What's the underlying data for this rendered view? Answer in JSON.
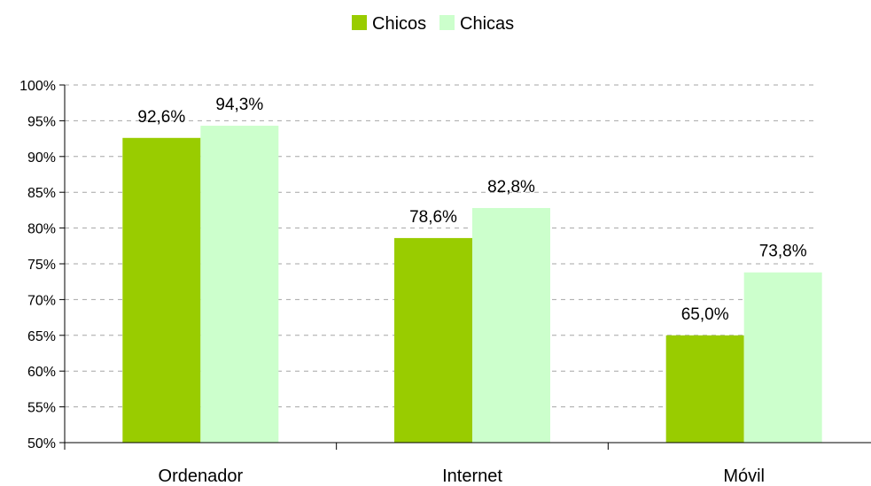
{
  "chart_data": {
    "type": "bar",
    "categories": [
      "Ordenador",
      "Internet",
      "Móvil"
    ],
    "series": [
      {
        "name": "Chicos",
        "values": [
          92.6,
          78.6,
          65.0
        ],
        "labels": [
          "92,6%",
          "78,6%",
          "65,0%"
        ],
        "color": "#99cc00"
      },
      {
        "name": "Chicas",
        "values": [
          94.3,
          82.8,
          73.8
        ],
        "labels": [
          "94,3%",
          "82,8%",
          "73,8%"
        ],
        "color": "#ccffcc"
      }
    ],
    "ylim": [
      50,
      100
    ],
    "yticks": [
      50,
      55,
      60,
      65,
      70,
      75,
      80,
      85,
      90,
      95,
      100
    ],
    "ytick_labels": [
      "50%",
      "55%",
      "60%",
      "65%",
      "70%",
      "75%",
      "80%",
      "85%",
      "90%",
      "95%",
      "100%"
    ],
    "grid": true,
    "grid_style": "dashed",
    "legend_position": "top-center",
    "title": "",
    "xlabel": "",
    "ylabel": ""
  }
}
